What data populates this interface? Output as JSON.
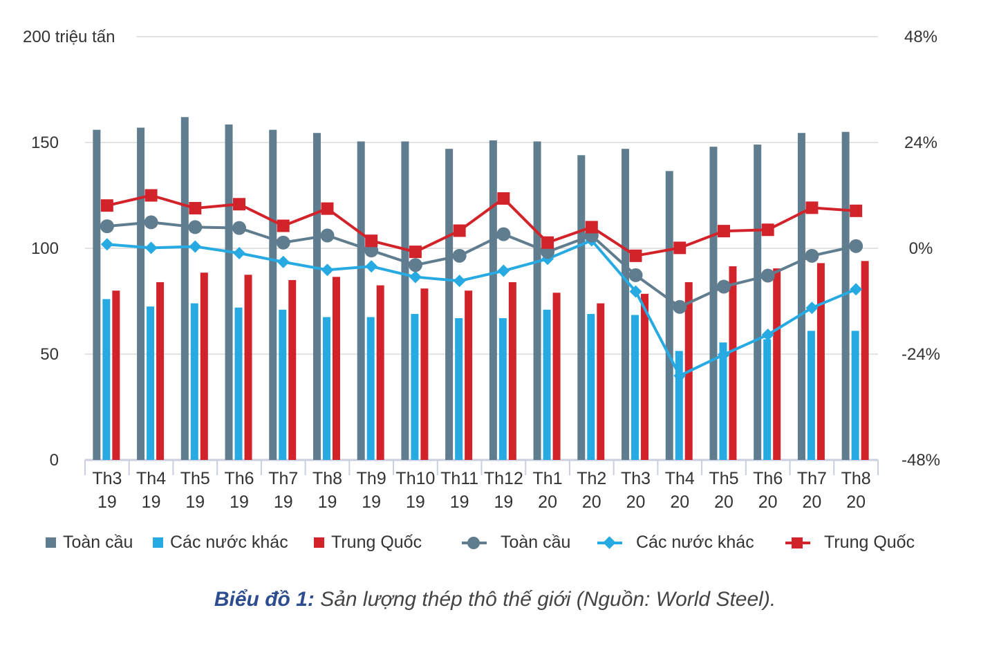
{
  "chart_data": {
    "type": "bar+line",
    "categories": [
      [
        "Th3",
        "19"
      ],
      [
        "Th4",
        "19"
      ],
      [
        "Th5",
        "19"
      ],
      [
        "Th6",
        "19"
      ],
      [
        "Th7",
        "19"
      ],
      [
        "Th8",
        "19"
      ],
      [
        "Th9",
        "19"
      ],
      [
        "Th10",
        "19"
      ],
      [
        "Th11",
        "19"
      ],
      [
        "Th12",
        "19"
      ],
      [
        "Th1",
        "20"
      ],
      [
        "Th2",
        "20"
      ],
      [
        "Th3",
        "20"
      ],
      [
        "Th4",
        "20"
      ],
      [
        "Th5",
        "20"
      ],
      [
        "Th6",
        "20"
      ],
      [
        "Th7",
        "20"
      ],
      [
        "Th8",
        "20"
      ]
    ],
    "left_axis": {
      "ticks": [
        "0",
        "50",
        "100",
        "150",
        "200 triệu tấn"
      ],
      "range": [
        0,
        200
      ]
    },
    "right_axis": {
      "ticks": [
        "-48%",
        "-24%",
        "0%",
        "24%",
        "48%"
      ],
      "range": [
        -48,
        48
      ]
    },
    "bar_series": [
      {
        "name": "Toàn cầu",
        "color": "#5f7d8e",
        "values": [
          156,
          157,
          162,
          158.5,
          156,
          154.5,
          150.5,
          150.5,
          147,
          151,
          150.5,
          144,
          147,
          136.5,
          148,
          149,
          154.5,
          155
        ]
      },
      {
        "name": "Các nước khác",
        "color": "#27aae1",
        "values": [
          76,
          72.5,
          74,
          72,
          71,
          67.5,
          67.5,
          69,
          67,
          67,
          71,
          69,
          68.5,
          51.5,
          55.5,
          57,
          61,
          61
        ]
      },
      {
        "name": "Trung Quốc",
        "color": "#d2232a",
        "values": [
          80,
          84,
          88.5,
          87.5,
          85,
          86.5,
          82.5,
          81,
          80,
          84,
          79,
          74,
          78.5,
          84,
          91.5,
          90.5,
          93,
          94
        ]
      }
    ],
    "line_series": [
      {
        "name": "Toàn cầu",
        "color": "#5f7d8e",
        "marker": "circle",
        "values": [
          5,
          5.9,
          4.8,
          4.6,
          1.3,
          2.9,
          -0.5,
          -3.8,
          -1.7,
          3.2,
          -0.8,
          2.9,
          -6.1,
          -13.3,
          -8.7,
          -6.2,
          -1.7,
          0.5
        ]
      },
      {
        "name": "Các nước khác",
        "color": "#27aae1",
        "marker": "diamond",
        "values": [
          0.9,
          0.1,
          0.4,
          -1.1,
          -3.1,
          -4.9,
          -4.1,
          -6.5,
          -7.4,
          -5.1,
          -2.4,
          1.8,
          -9.8,
          -28.9,
          -24.1,
          -19.6,
          -13.5,
          -9.3
        ]
      },
      {
        "name": "Trung Quốc",
        "color": "#d2232a",
        "marker": "square",
        "values": [
          9.7,
          12,
          9.1,
          10,
          5.1,
          9,
          1.7,
          -0.8,
          4,
          11.3,
          1.3,
          4.8,
          -1.7,
          0.1,
          3.9,
          4.2,
          9.2,
          8.5
        ]
      }
    ],
    "grid": "horizontal",
    "legend_position": "bottom"
  },
  "legend": [
    {
      "label": "Toàn cầu",
      "kind": "bar",
      "color": "#5f7d8e"
    },
    {
      "label": "Các nước khác",
      "kind": "bar",
      "color": "#27aae1"
    },
    {
      "label": "Trung Quốc",
      "kind": "bar",
      "color": "#d2232a"
    },
    {
      "label": "Toàn cầu",
      "kind": "line-circle",
      "color": "#5f7d8e"
    },
    {
      "label": "Các nước khác",
      "kind": "line-diamond",
      "color": "#27aae1"
    },
    {
      "label": "Trung Quốc",
      "kind": "line-square",
      "color": "#d2232a"
    }
  ],
  "caption": {
    "bold": "Biểu đồ 1:",
    "text": " Sản lượng thép thô thế giới (Nguồn: World Steel)."
  }
}
